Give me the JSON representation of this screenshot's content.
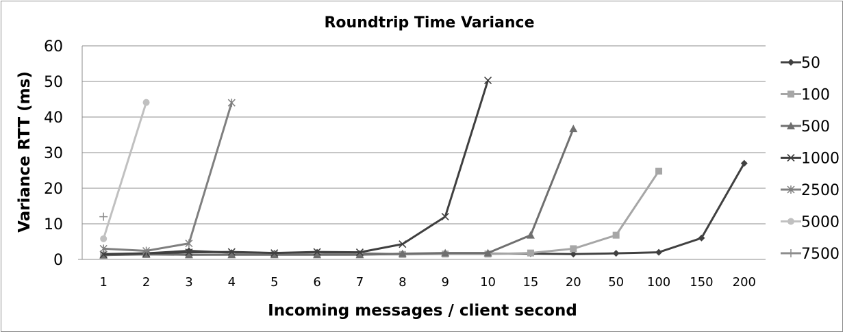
{
  "chart_data": {
    "type": "line",
    "title": "Roundtrip Time Variance",
    "xlabel": "Incoming messages / client  second",
    "ylabel": "Variance RTT (ms)",
    "ylim": [
      0,
      60
    ],
    "yticks": [
      0,
      10,
      20,
      30,
      40,
      50,
      60
    ],
    "grid": "horizontal",
    "legend_position": "right",
    "categories": [
      "1",
      "2",
      "3",
      "4",
      "5",
      "6",
      "7",
      "8",
      "9",
      "10",
      "15",
      "20",
      "50",
      "100",
      "150",
      "200"
    ],
    "series": [
      {
        "name": "50",
        "color": "#404040",
        "marker": "diamond",
        "values": [
          1.5,
          1.7,
          2.4,
          1.9,
          1.7,
          2.0,
          1.6,
          1.5,
          1.6,
          1.6,
          1.6,
          1.5,
          1.7,
          2.0,
          6.0,
          27.0
        ]
      },
      {
        "name": "100",
        "color": "#a6a6a6",
        "marker": "square",
        "values": [
          1.2,
          1.5,
          1.3,
          1.4,
          1.4,
          1.4,
          1.4,
          1.4,
          1.5,
          1.5,
          1.8,
          3.0,
          6.8,
          24.8,
          null,
          null
        ]
      },
      {
        "name": "500",
        "color": "#6f6f6f",
        "marker": "triangle",
        "values": [
          1.2,
          1.4,
          1.3,
          1.3,
          1.3,
          1.3,
          1.3,
          1.6,
          1.8,
          1.8,
          6.8,
          36.7,
          null,
          null,
          null,
          null
        ]
      },
      {
        "name": "1000",
        "color": "#3f3f3f",
        "marker": "x",
        "values": [
          1.4,
          1.7,
          2.0,
          2.1,
          1.8,
          2.1,
          2.0,
          4.3,
          12.0,
          50.3,
          null,
          null,
          null,
          null,
          null,
          null
        ]
      },
      {
        "name": "2500",
        "color": "#7f7f7f",
        "marker": "star",
        "values": [
          3.0,
          2.4,
          4.5,
          44.0,
          null,
          null,
          null,
          null,
          null,
          null,
          null,
          null,
          null,
          null,
          null,
          null
        ]
      },
      {
        "name": "5000",
        "color": "#c0c0c0",
        "marker": "circle",
        "values": [
          5.8,
          44.1,
          null,
          null,
          null,
          null,
          null,
          null,
          null,
          null,
          null,
          null,
          null,
          null,
          null,
          null
        ]
      },
      {
        "name": "7500",
        "color": "#8c8c8c",
        "marker": "plus",
        "values": [
          12.0,
          null,
          null,
          null,
          null,
          null,
          null,
          null,
          null,
          null,
          null,
          null,
          null,
          null,
          null,
          null
        ]
      }
    ]
  }
}
